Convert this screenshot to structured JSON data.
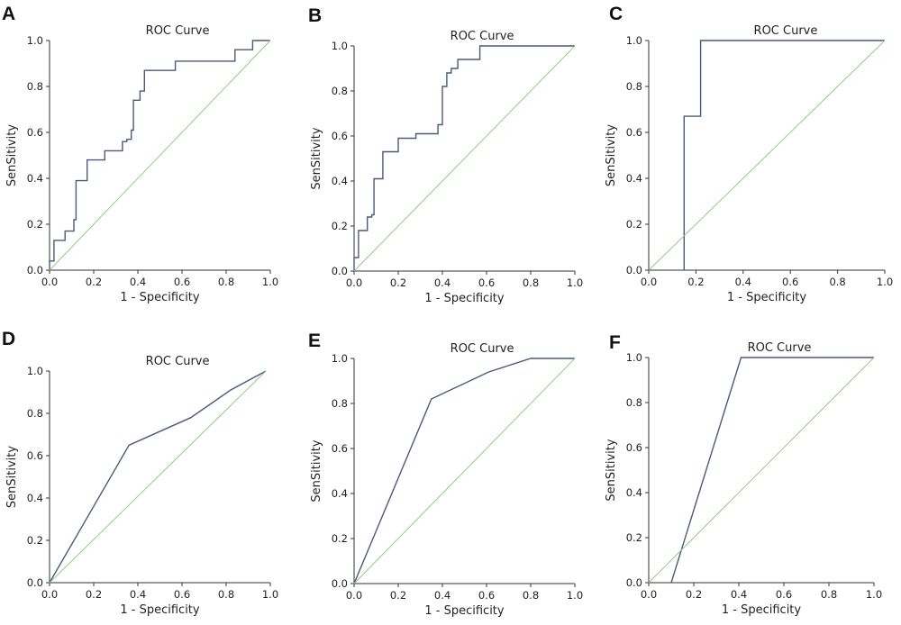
{
  "colors": {
    "curve": "#4a5a7c",
    "reference": "#8fcf7e",
    "axis": "#333333"
  },
  "chart_data": [
    {
      "panel": "A",
      "type": "line",
      "title": "ROC Curve",
      "xlabel": "1 - Specificity",
      "ylabel": "SenSitivity",
      "xlim": [
        0,
        1
      ],
      "ylim": [
        0,
        1
      ],
      "xticks": [
        "0.0",
        "0.2",
        "0.4",
        "0.6",
        "0.8",
        "1.0"
      ],
      "yticks": [
        "0.0",
        "0.2",
        "0.4",
        "0.6",
        "0.8",
        "1.0"
      ],
      "grid": false,
      "series": [
        {
          "role": "roc",
          "x": [
            0,
            0,
            0.02,
            0.02,
            0.07,
            0.07,
            0.11,
            0.11,
            0.12,
            0.12,
            0.17,
            0.17,
            0.25,
            0.25,
            0.33,
            0.33,
            0.35,
            0.35,
            0.37,
            0.37,
            0.38,
            0.38,
            0.41,
            0.41,
            0.43,
            0.43,
            0.57,
            0.57,
            0.84,
            0.84,
            0.92,
            0.92,
            1.0
          ],
          "y": [
            0,
            0.04,
            0.04,
            0.13,
            0.13,
            0.17,
            0.17,
            0.22,
            0.22,
            0.39,
            0.39,
            0.48,
            0.48,
            0.52,
            0.52,
            0.56,
            0.56,
            0.57,
            0.57,
            0.61,
            0.61,
            0.74,
            0.74,
            0.78,
            0.78,
            0.87,
            0.87,
            0.91,
            0.91,
            0.96,
            0.96,
            1.0,
            1.0
          ]
        },
        {
          "role": "reference",
          "x": [
            0,
            1
          ],
          "y": [
            0,
            1
          ]
        }
      ]
    },
    {
      "panel": "B",
      "type": "line",
      "title": "ROC Curve",
      "xlabel": "1 - Specificity",
      "ylabel": "SenSitivity",
      "xlim": [
        0,
        1
      ],
      "ylim": [
        0,
        1
      ],
      "xticks": [
        "0.0",
        "0.2",
        "0.4",
        "0.6",
        "0.8",
        "1.0"
      ],
      "yticks": [
        "0.0",
        "0.2",
        "0.4",
        "0.6",
        "0.8",
        "1.0"
      ],
      "grid": false,
      "series": [
        {
          "role": "roc",
          "x": [
            0,
            0,
            0.02,
            0.02,
            0.06,
            0.06,
            0.08,
            0.08,
            0.09,
            0.09,
            0.13,
            0.13,
            0.2,
            0.2,
            0.28,
            0.28,
            0.38,
            0.38,
            0.4,
            0.4,
            0.42,
            0.42,
            0.44,
            0.44,
            0.47,
            0.47,
            0.57,
            0.57,
            1.0
          ],
          "y": [
            0,
            0.06,
            0.06,
            0.18,
            0.18,
            0.24,
            0.24,
            0.25,
            0.25,
            0.41,
            0.41,
            0.53,
            0.53,
            0.59,
            0.59,
            0.61,
            0.61,
            0.65,
            0.65,
            0.82,
            0.82,
            0.88,
            0.88,
            0.9,
            0.9,
            0.94,
            0.94,
            1.0,
            1.0
          ]
        },
        {
          "role": "reference",
          "x": [
            0,
            1
          ],
          "y": [
            0,
            1
          ]
        }
      ]
    },
    {
      "panel": "C",
      "type": "line",
      "title": "ROC Curve",
      "xlabel": "1 - Specificity",
      "ylabel": "SenSitivity",
      "xlim": [
        0,
        1
      ],
      "ylim": [
        0,
        1
      ],
      "xticks": [
        "0.0",
        "0.2",
        "0.4",
        "0.6",
        "0.8",
        "1.0"
      ],
      "yticks": [
        "0.0",
        "0.2",
        "0.4",
        "0.6",
        "0.8",
        "1.0"
      ],
      "grid": false,
      "series": [
        {
          "role": "roc",
          "x": [
            0.15,
            0.15,
            0.22,
            0.22,
            1.0
          ],
          "y": [
            0,
            0.67,
            0.67,
            1.0,
            1.0
          ]
        },
        {
          "role": "reference",
          "x": [
            0,
            1
          ],
          "y": [
            0,
            1
          ]
        }
      ]
    },
    {
      "panel": "D",
      "type": "line",
      "title": "ROC Curve",
      "xlabel": "1 - Specificity",
      "ylabel": "SenSitivity",
      "xlim": [
        0,
        1
      ],
      "ylim": [
        0,
        1
      ],
      "xticks": [
        "0.0",
        "0.2",
        "0.4",
        "0.6",
        "0.8",
        "1.0"
      ],
      "yticks": [
        "0.0",
        "0.2",
        "0.4",
        "0.6",
        "0.8",
        "1.0"
      ],
      "grid": false,
      "series": [
        {
          "role": "roc",
          "x": [
            0,
            0.36,
            0.64,
            0.82,
            0.98
          ],
          "y": [
            0,
            0.65,
            0.78,
            0.91,
            1.0
          ]
        },
        {
          "role": "reference",
          "x": [
            0,
            0.98
          ],
          "y": [
            0,
            1.0
          ]
        }
      ]
    },
    {
      "panel": "E",
      "type": "line",
      "title": "ROC Curve",
      "xlabel": "1 - Specificity",
      "ylabel": "SenSitivity",
      "xlim": [
        0,
        1
      ],
      "ylim": [
        0,
        1
      ],
      "xticks": [
        "0.0",
        "0.2",
        "0.4",
        "0.6",
        "0.8",
        "1.0"
      ],
      "yticks": [
        "0.0",
        "0.2",
        "0.4",
        "0.6",
        "0.8",
        "1.0"
      ],
      "grid": false,
      "series": [
        {
          "role": "roc",
          "x": [
            0,
            0.35,
            0.61,
            0.8,
            1.0
          ],
          "y": [
            0,
            0.82,
            0.94,
            1.0,
            1.0
          ]
        },
        {
          "role": "reference",
          "x": [
            0,
            1
          ],
          "y": [
            0,
            1
          ]
        }
      ]
    },
    {
      "panel": "F",
      "type": "line",
      "title": "ROC Curve",
      "xlabel": "1 - Specificity",
      "ylabel": "SenSitivity",
      "xlim": [
        0,
        1
      ],
      "ylim": [
        0,
        1
      ],
      "xticks": [
        "0.0",
        "0.2",
        "0.4",
        "0.6",
        "0.8",
        "1.0"
      ],
      "yticks": [
        "0.0",
        "0.2",
        "0.4",
        "0.6",
        "0.8",
        "1.0"
      ],
      "grid": false,
      "series": [
        {
          "role": "roc",
          "x": [
            0.1,
            0.41,
            1.0
          ],
          "y": [
            0,
            1.0,
            1.0
          ]
        },
        {
          "role": "reference",
          "x": [
            0,
            1
          ],
          "y": [
            0,
            1
          ]
        }
      ]
    }
  ]
}
